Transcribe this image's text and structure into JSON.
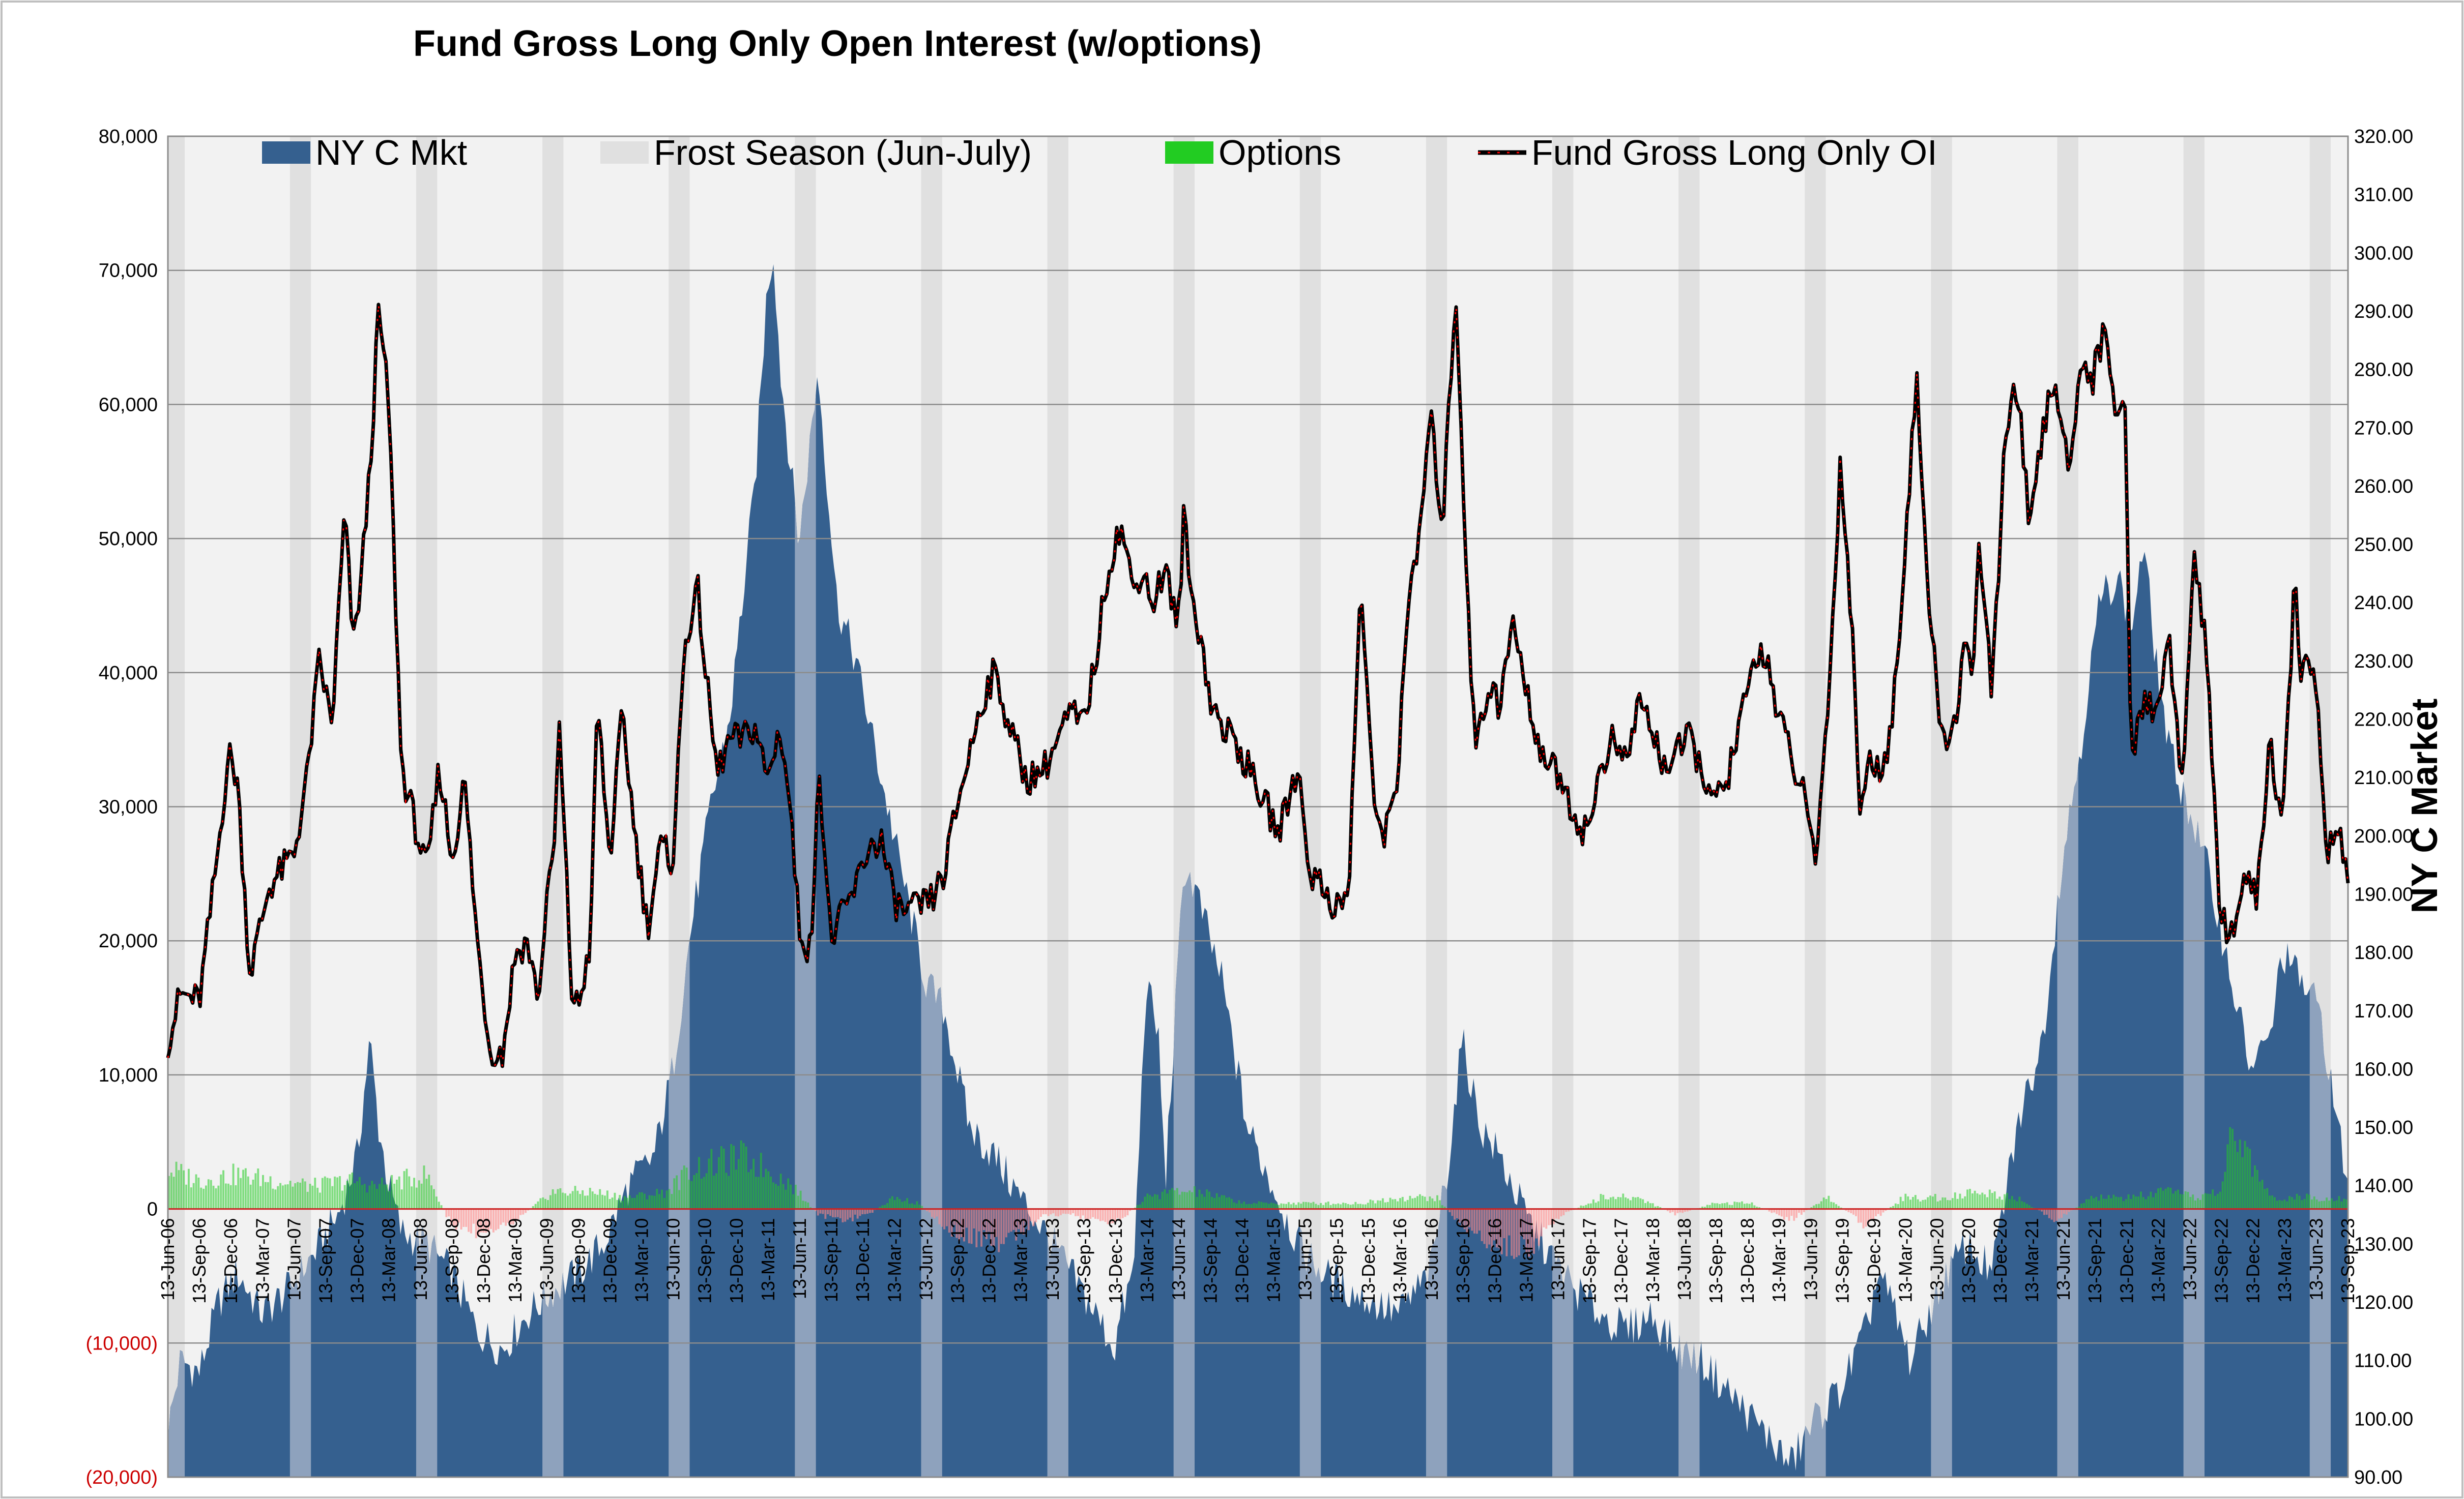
{
  "chart_data": {
    "type": "area",
    "title": "Fund Gross Long Only Open Interest (w/options)",
    "ylabel_right": "NY C Market",
    "ylim_left": [
      -20000,
      80000
    ],
    "ylim_right": [
      90,
      320
    ],
    "yticks_left": [
      "80,000",
      "70,000",
      "60,000",
      "50,000",
      "40,000",
      "30,000",
      "20,000",
      "10,000",
      "0",
      "(10,000)",
      "(20,000)"
    ],
    "yticks_left_values": [
      80000,
      70000,
      60000,
      50000,
      40000,
      30000,
      20000,
      10000,
      0,
      -10000,
      -20000
    ],
    "yticks_right": [
      "320.00",
      "310.00",
      "300.00",
      "290.00",
      "280.00",
      "270.00",
      "260.00",
      "250.00",
      "240.00",
      "230.00",
      "220.00",
      "210.00",
      "200.00",
      "190.00",
      "180.00",
      "170.00",
      "160.00",
      "150.00",
      "140.00",
      "130.00",
      "120.00",
      "110.00",
      "100.00",
      "90.00"
    ],
    "x_tick_labels": [
      "13-Jun-06",
      "13-Sep-06",
      "13-Dec-06",
      "13-Mar-07",
      "13-Jun-07",
      "13-Sep-07",
      "13-Dec-07",
      "13-Mar-08",
      "13-Jun-08",
      "13-Sep-08",
      "13-Dec-08",
      "13-Mar-09",
      "13-Jun-09",
      "13-Sep-09",
      "13-Dec-09",
      "13-Mar-10",
      "13-Jun-10",
      "13-Sep-10",
      "13-Dec-10",
      "13-Mar-11",
      "13-Jun-11",
      "13-Sep-11",
      "13-Dec-11",
      "13-Mar-12",
      "13-Jun-12",
      "13-Sep-12",
      "13-Dec-12",
      "13-Mar-13",
      "13-Jun-13",
      "13-Sep-13",
      "13-Dec-13",
      "13-Mar-14",
      "13-Jun-14",
      "13-Sep-14",
      "13-Dec-14",
      "13-Mar-15",
      "13-Jun-15",
      "13-Sep-15",
      "13-Dec-15",
      "13-Mar-16",
      "13-Jun-16",
      "13-Sep-16",
      "13-Dec-16",
      "13-Mar-17",
      "13-Jun-17",
      "13-Sep-17",
      "13-Dec-17",
      "13-Mar-18",
      "13-Jun-18",
      "13-Sep-18",
      "13-Dec-18",
      "13-Mar-19",
      "13-Jun-19",
      "13-Sep-19",
      "13-Dec-19",
      "13-Mar-20",
      "13-Jun-20",
      "13-Sep-20",
      "13-Dec-20",
      "13-Mar-21",
      "13-Jun-21",
      "13-Sep-21",
      "13-Dec-21",
      "13-Mar-22",
      "13-Jun-22",
      "13-Sep-22",
      "13-Dec-22",
      "13-Mar-23",
      "13-Jun-23",
      "13-Sep-23"
    ],
    "legend": [
      "NY C Mkt",
      "Frost Season (Jun-July)",
      "Options",
      "Fund Gross Long Only OI"
    ],
    "legend_position": "top",
    "grid": true,
    "colors": {
      "ny_c_mkt": "#35608f",
      "ny_c_mkt_frost": "#8ea2bd",
      "frost": "#e0e0e0",
      "plot_bg": "#f2f2f2",
      "options_pos": "#22cc22",
      "options_neg": "#ff8888",
      "fund_line": "#000000",
      "fund_marker": "#ff0000"
    },
    "series": [
      {
        "name": "Fund Gross Long Only OI",
        "axis": "left",
        "x_year": [
          2006.45,
          2006.55,
          2006.7,
          2006.85,
          2006.93,
          2007.0,
          2007.1,
          2007.25,
          2007.45,
          2007.55,
          2007.65,
          2007.75,
          2007.85,
          2007.92,
          2007.98,
          2008.05,
          2008.12,
          2008.2,
          2008.3,
          2008.4,
          2008.5,
          2008.6,
          2008.7,
          2008.8,
          2008.9,
          2009.0,
          2009.1,
          2009.2,
          2009.3,
          2009.35,
          2009.4,
          2009.45,
          2009.5,
          2009.55,
          2009.65,
          2009.7,
          2009.8,
          2009.85,
          2009.95,
          2010.05,
          2010.15,
          2010.25,
          2010.35,
          2010.45,
          2010.55,
          2010.6,
          2010.65,
          2010.72,
          2010.8,
          2010.9,
          2011.0,
          2011.1,
          2011.2,
          2011.3,
          2011.38,
          2011.45,
          2011.55,
          2011.6,
          2011.7,
          2011.8,
          2011.9,
          2012.0,
          2012.1,
          2012.2,
          2012.3,
          2012.4,
          2012.5,
          2012.6,
          2012.7,
          2012.8,
          2012.9,
          2013.0,
          2013.15,
          2013.25,
          2013.4,
          2013.5,
          2013.6,
          2013.7,
          2013.8,
          2013.9,
          2014.0,
          2014.1,
          2014.17,
          2014.25,
          2014.35,
          2014.45,
          2014.5,
          2014.55,
          2014.65,
          2014.7,
          2014.8,
          2014.9,
          2015.0,
          2015.15,
          2015.25,
          2015.4,
          2015.5,
          2015.6,
          2015.7,
          2015.8,
          2015.9,
          2016.0,
          2016.1,
          2016.2,
          2016.25,
          2016.35,
          2016.45,
          2016.55,
          2016.65,
          2016.75,
          2016.8,
          2016.85,
          2016.95,
          2017.0,
          2017.1,
          2017.2,
          2017.3,
          2017.4,
          2017.5,
          2017.6,
          2017.7,
          2017.8,
          2017.9,
          2018.0,
          2018.1,
          2018.2,
          2018.3,
          2018.4,
          2018.5,
          2018.6,
          2018.7,
          2018.8,
          2018.9,
          2019.0,
          2019.1,
          2019.2,
          2019.3,
          2019.4,
          2019.5,
          2019.6,
          2019.7,
          2019.8,
          2019.85,
          2019.92,
          2020.0,
          2020.1,
          2020.2,
          2020.3,
          2020.4,
          2020.5,
          2020.6,
          2020.7,
          2020.75,
          2020.8,
          2020.9,
          2021.0,
          2021.1,
          2021.2,
          2021.3,
          2021.4,
          2021.5,
          2021.6,
          2021.7,
          2021.8,
          2021.9,
          2021.95,
          2022.0,
          2022.1,
          2022.2,
          2022.3,
          2022.4,
          2022.5,
          2022.6,
          2022.7,
          2022.8,
          2022.9,
          2023.0,
          2023.1,
          2023.2,
          2023.3,
          2023.35,
          2023.45,
          2023.55,
          2023.65,
          2023.72
        ],
        "values": [
          12500,
          16000,
          15500,
          27000,
          34000,
          32000,
          17500,
          24000,
          26500,
          32000,
          41000,
          36000,
          52000,
          42000,
          47000,
          55000,
          67000,
          60000,
          33000,
          29000,
          25000,
          33000,
          26000,
          32000,
          20000,
          12000,
          11500,
          19000,
          20000,
          17000,
          16000,
          24000,
          25000,
          36000,
          16000,
          15000,
          20000,
          38000,
          26000,
          37000,
          28000,
          21000,
          27000,
          26000,
          43000,
          44000,
          46000,
          39000,
          32500,
          35000,
          35000,
          36000,
          32000,
          36000,
          30000,
          21000,
          19000,
          34000,
          20000,
          22000,
          24000,
          27000,
          27500,
          23000,
          22000,
          22500,
          23000,
          25000,
          30000,
          34000,
          38000,
          40000,
          35000,
          32000,
          33000,
          35000,
          37000,
          36000,
          41000,
          48000,
          51000,
          46000,
          48000,
          45000,
          48000,
          43000,
          52000,
          46000,
          42000,
          38000,
          36000,
          35000,
          33000,
          30000,
          28000,
          33000,
          25000,
          24000,
          22500,
          23000,
          47000,
          30000,
          28000,
          33000,
          43000,
          49000,
          59000,
          51000,
          69000,
          45000,
          35000,
          36000,
          40000,
          37000,
          44000,
          39000,
          35000,
          33000,
          32000,
          29000,
          28000,
          33000,
          35000,
          33000,
          38000,
          36000,
          33000,
          34000,
          35000,
          33000,
          30000,
          32000,
          36000,
          40000,
          42000,
          37000,
          34000,
          31000,
          26000,
          37000,
          56000,
          42000,
          30000,
          33000,
          33000,
          35000,
          48000,
          62000,
          45000,
          35000,
          36000,
          43000,
          40000,
          50000,
          38000,
          57000,
          62000,
          50000,
          58000,
          62000,
          55000,
          63000,
          62000,
          66000,
          58000,
          63000,
          33000,
          38000,
          37000,
          43000,
          31000,
          49000,
          42000,
          22000,
          20500,
          25000,
          23000,
          35000,
          28000,
          47000,
          40000,
          41000,
          27000,
          28000,
          25000
        ]
      },
      {
        "name": "NY C Mkt",
        "axis": "right",
        "x_year": [
          2006.45,
          2006.55,
          2006.7,
          2006.85,
          2007.0,
          2007.2,
          2007.4,
          2007.6,
          2007.8,
          2007.95,
          2008.05,
          2008.12,
          2008.2,
          2008.3,
          2008.5,
          2008.7,
          2008.9,
          2009.1,
          2009.3,
          2009.5,
          2009.7,
          2009.9,
          2010.1,
          2010.3,
          2010.45,
          2010.6,
          2010.75,
          2010.9,
          2011.0,
          2011.1,
          2011.2,
          2011.25,
          2011.3,
          2011.45,
          2011.55,
          2011.6,
          2011.75,
          2011.9,
          2012.1,
          2012.3,
          2012.45,
          2012.6,
          2012.8,
          2013.0,
          2013.2,
          2013.4,
          2013.6,
          2013.8,
          2013.95,
          2014.0,
          2014.1,
          2014.2,
          2014.3,
          2014.35,
          2014.5,
          2014.6,
          2014.8,
          2015.0,
          2015.2,
          2015.4,
          2015.6,
          2015.8,
          2016.0,
          2016.2,
          2016.45,
          2016.6,
          2016.7,
          2016.85,
          2017.0,
          2017.2,
          2017.4,
          2017.6,
          2017.8,
          2018.0,
          2018.2,
          2018.4,
          2018.6,
          2018.8,
          2019.0,
          2019.2,
          2019.3,
          2019.4,
          2019.5,
          2019.7,
          2019.9,
          2020.0,
          2020.1,
          2020.25,
          2020.4,
          2020.55,
          2020.7,
          2020.9,
          2021.1,
          2021.3,
          2021.45,
          2021.6,
          2021.75,
          2021.9,
          2022.0,
          2022.1,
          2022.2,
          2022.3,
          2022.45,
          2022.6,
          2022.8,
          2022.95,
          2023.1,
          2023.2,
          2023.35,
          2023.5,
          2023.6,
          2023.72
        ],
        "values": [
          98,
          110,
          108,
          120,
          125,
          118,
          122,
          128,
          135,
          145,
          165,
          150,
          140,
          132,
          130,
          125,
          115,
          112,
          118,
          122,
          125,
          130,
          140,
          145,
          160,
          185,
          205,
          220,
          240,
          260,
          295,
          300,
          280,
          250,
          270,
          280,
          240,
          230,
          210,
          190,
          175,
          170,
          150,
          145,
          138,
          132,
          125,
          118,
          112,
          118,
          125,
          175,
          165,
          140,
          195,
          190,
          175,
          150,
          140,
          130,
          125,
          122,
          120,
          118,
          125,
          145,
          165,
          150,
          145,
          135,
          128,
          122,
          118,
          115,
          118,
          112,
          110,
          105,
          100,
          95,
          92,
          96,
          100,
          105,
          115,
          125,
          120,
          110,
          118,
          125,
          130,
          125,
          150,
          165,
          195,
          215,
          240,
          245,
          235,
          250,
          230,
          215,
          205,
          195,
          175,
          160,
          165,
          180,
          175,
          170,
          155,
          140
        ]
      },
      {
        "name": "Options",
        "axis": "left",
        "x_year": [
          2006.45,
          2006.7,
          2007.0,
          2007.3,
          2007.6,
          2007.9,
          2008.1,
          2008.3,
          2008.5,
          2008.7,
          2008.9,
          2009.2,
          2009.5,
          2009.8,
          2010.1,
          2010.4,
          2010.6,
          2010.8,
          2011.0,
          2011.2,
          2011.4,
          2011.6,
          2011.8,
          2012.0,
          2012.2,
          2012.4,
          2012.6,
          2012.8,
          2013.0,
          2013.2,
          2013.4,
          2013.6,
          2013.8,
          2014.0,
          2014.2,
          2014.4,
          2014.6,
          2014.8,
          2015.0,
          2015.3,
          2015.6,
          2015.9,
          2016.2,
          2016.5,
          2016.7,
          2016.9,
          2017.1,
          2017.3,
          2017.5,
          2017.8,
          2018.1,
          2018.4,
          2018.7,
          2019.0,
          2019.3,
          2019.6,
          2019.9,
          2020.2,
          2020.5,
          2020.8,
          2021.1,
          2021.4,
          2021.7,
          2022.0,
          2022.3,
          2022.5,
          2022.7,
          2022.8,
          2022.9,
          2023.1,
          2023.4,
          2023.72
        ],
        "values": [
          3500,
          2500,
          3000,
          2500,
          2000,
          2500,
          2000,
          2500,
          3000,
          -1500,
          -2000,
          -1000,
          1500,
          1500,
          1000,
          1500,
          3500,
          4000,
          4500,
          3500,
          2000,
          -500,
          -1000,
          -500,
          1000,
          500,
          -1500,
          -2500,
          -3000,
          -2000,
          -500,
          -500,
          -1000,
          -1000,
          1000,
          1500,
          1500,
          1000,
          500,
          500,
          500,
          500,
          1000,
          1000,
          -1500,
          -3000,
          -3500,
          -3000,
          -500,
          1000,
          1000,
          -500,
          500,
          500,
          -1000,
          1000,
          -1500,
          1000,
          1000,
          1500,
          1000,
          -1000,
          1000,
          1000,
          1500,
          1000,
          1500,
          6000,
          5500,
          1000,
          1000,
          1000
        ]
      }
    ],
    "frost_season_years": [
      2006,
      2007,
      2008,
      2009,
      2010,
      2011,
      2012,
      2013,
      2014,
      2015,
      2016,
      2017,
      2018,
      2019,
      2020,
      2021,
      2022,
      2023
    ]
  }
}
